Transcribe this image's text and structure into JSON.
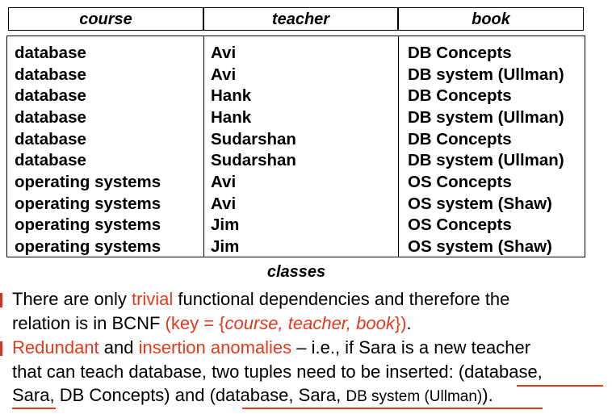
{
  "table": {
    "headers": [
      "course",
      "teacher",
      "book"
    ],
    "rows": [
      {
        "course": "database",
        "teacher": "Avi",
        "book": "DB Concepts"
      },
      {
        "course": "database",
        "teacher": "Avi",
        "book": "DB system (Ullman)"
      },
      {
        "course": "database",
        "teacher": "Hank",
        "book": "DB Concepts"
      },
      {
        "course": "database",
        "teacher": "Hank",
        "book": "DB system (Ullman)"
      },
      {
        "course": "database",
        "teacher": "Sudarshan",
        "book": "DB Concepts"
      },
      {
        "course": "database",
        "teacher": "Sudarshan",
        "book": "DB system (Ullman)"
      },
      {
        "course": "operating systems",
        "teacher": "Avi",
        "book": "OS Concepts"
      },
      {
        "course": "operating systems",
        "teacher": "Avi",
        "book": "OS system (Shaw)"
      },
      {
        "course": "operating systems",
        "teacher": "Jim",
        "book": "OS Concepts"
      },
      {
        "course": "operating systems",
        "teacher": "Jim",
        "book": "OS system (Shaw)"
      }
    ],
    "caption": "classes"
  },
  "bullets": [
    {
      "line1": {
        "t1": "There are only ",
        "r1": "trivial",
        "t2": " functional dependencies and therefore the"
      },
      "line2": {
        "t1": "relation is in BCNF ",
        "r1": "(key = {",
        "i1": "course, teacher, book",
        "r2": "})",
        "t2": "."
      }
    },
    {
      "line1": {
        "r1": "Redundant",
        "t1": " and ",
        "r2": "insertion anomalies",
        "t2": " – i.e., if Sara is a new teacher"
      },
      "line2": {
        "t1": "that can teach database, two tuples need to be inserted: (database,"
      },
      "line3": {
        "t1": "Sara, DB Concepts) and (database, Sara, ",
        "s1": "DB system (Ullman)",
        "t2": ")."
      }
    }
  ],
  "colors": {
    "accent": "#e03b1f",
    "text": "#000000",
    "border": "#000000"
  }
}
